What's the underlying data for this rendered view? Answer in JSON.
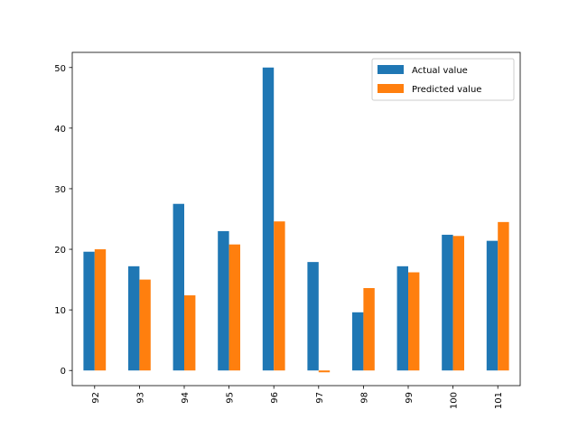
{
  "chart_data": {
    "type": "bar",
    "categories": [
      "92",
      "93",
      "94",
      "95",
      "96",
      "97",
      "98",
      "99",
      "100",
      "101"
    ],
    "series": [
      {
        "name": "Actual value",
        "color": "#1f77b4",
        "values": [
          19.6,
          17.2,
          27.5,
          23.0,
          50.0,
          17.9,
          9.6,
          17.2,
          22.4,
          21.4
        ]
      },
      {
        "name": "Predicted value",
        "color": "#ff7f0e",
        "values": [
          20.0,
          15.0,
          12.4,
          20.8,
          24.6,
          -0.3,
          13.6,
          16.2,
          22.2,
          24.5
        ]
      }
    ],
    "y_ticks": [
      0,
      10,
      20,
      30,
      40,
      50
    ],
    "ylim": [
      -2.5,
      52.5
    ],
    "title": "",
    "xlabel": "",
    "ylabel": "",
    "grid": false,
    "legend_position": "top-right",
    "x_tick_rotation": "vertical"
  }
}
